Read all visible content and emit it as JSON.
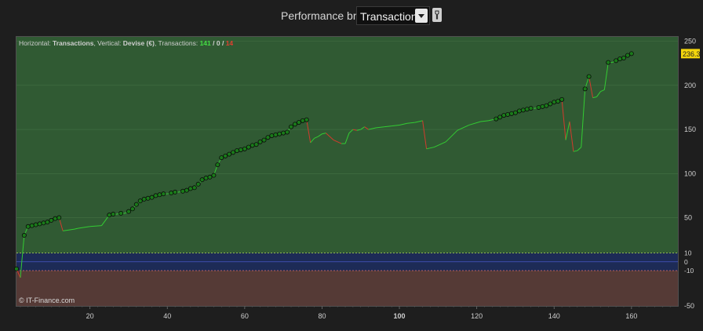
{
  "header": {
    "label": "Performance brute",
    "select_value": "Transactions",
    "select_icon": "chevron-down-icon",
    "tool_icon": "wrench-icon"
  },
  "info": {
    "horizontal_key": "Horizontal: ",
    "horizontal_value": "Transactions",
    "vertical_key": ", Vertical: ",
    "vertical_value": "Devise (€)",
    "transactions_key": ", Transactions: ",
    "winners": "141",
    "sep1": " / ",
    "neutral": "0",
    "sep2": " / ",
    "losers": "14"
  },
  "copyright": "© IT-Finance.com",
  "colors": {
    "background": "#1e1e1e",
    "positive_zone": "#305a33",
    "negative_zone": "#553a36",
    "neutral_band": "#1d2b56",
    "gain_line": "#33cc33",
    "loss_line": "#d23b2d",
    "marker": "#1a7a1a",
    "last_value_bg": "#f4d60c",
    "winners_text": "#44dd44",
    "losers_text": "#e04030"
  },
  "chart_data": {
    "type": "line",
    "xlabel": "",
    "ylabel": "",
    "xlim": [
      1,
      172
    ],
    "ylim": [
      -50,
      255
    ],
    "x_ticks": [
      20,
      40,
      60,
      80,
      100,
      120,
      140,
      160
    ],
    "x_tick_labels": [
      "20",
      "40",
      "60",
      "80",
      "100",
      "120",
      "140",
      "160"
    ],
    "y_ticks": [
      -50,
      50,
      100,
      150,
      200,
      250
    ],
    "y_tick_labels": [
      "-50",
      "50",
      "100",
      "150",
      "200",
      "250"
    ],
    "threshold_high": 10,
    "threshold_low": -10,
    "threshold_labels": [
      "10",
      "0",
      "-10"
    ],
    "last_value": "236.3",
    "grid": true,
    "series": [
      {
        "points": [
          [
            1,
            -8
          ],
          [
            2,
            -18
          ],
          [
            3,
            30
          ],
          [
            4,
            40
          ],
          [
            5,
            41
          ],
          [
            6,
            42
          ],
          [
            7,
            43
          ],
          [
            8,
            44
          ],
          [
            9,
            45
          ],
          [
            10,
            47
          ],
          [
            11,
            49
          ],
          [
            12,
            50
          ],
          [
            13,
            35
          ],
          [
            16,
            37
          ],
          [
            17,
            38
          ],
          [
            20,
            40
          ],
          [
            23,
            41
          ],
          [
            25,
            53
          ],
          [
            26,
            54
          ],
          [
            27,
            54
          ],
          [
            28,
            55
          ],
          [
            29,
            55
          ],
          [
            30,
            57
          ],
          [
            31,
            60
          ],
          [
            32,
            65
          ],
          [
            33,
            69
          ],
          [
            34,
            71
          ],
          [
            35,
            72
          ],
          [
            36,
            73
          ],
          [
            37,
            75
          ],
          [
            38,
            76
          ],
          [
            39,
            77
          ],
          [
            40,
            77
          ],
          [
            41,
            78
          ],
          [
            42,
            79
          ],
          [
            43,
            79
          ],
          [
            44,
            80
          ],
          [
            45,
            81
          ],
          [
            46,
            83
          ],
          [
            47,
            84
          ],
          [
            48,
            88
          ],
          [
            49,
            93
          ],
          [
            50,
            95
          ],
          [
            51,
            96
          ],
          [
            52,
            98
          ],
          [
            53,
            110
          ],
          [
            54,
            118
          ],
          [
            55,
            120
          ],
          [
            56,
            122
          ],
          [
            57,
            124
          ],
          [
            58,
            126
          ],
          [
            59,
            127
          ],
          [
            60,
            128
          ],
          [
            61,
            130
          ],
          [
            62,
            132
          ],
          [
            63,
            133
          ],
          [
            64,
            136
          ],
          [
            65,
            138
          ],
          [
            66,
            141
          ],
          [
            67,
            143
          ],
          [
            68,
            144
          ],
          [
            69,
            145
          ],
          [
            70,
            146
          ],
          [
            71,
            147
          ],
          [
            72,
            153
          ],
          [
            73,
            156
          ],
          [
            74,
            158
          ],
          [
            75,
            160
          ],
          [
            76,
            161
          ],
          [
            77,
            135
          ],
          [
            78,
            140
          ],
          [
            79,
            142
          ],
          [
            80,
            145
          ],
          [
            81,
            146
          ],
          [
            83,
            138
          ],
          [
            85,
            134
          ],
          [
            86,
            134
          ],
          [
            87,
            146
          ],
          [
            88,
            150
          ],
          [
            89,
            149
          ],
          [
            90,
            150
          ],
          [
            91,
            153
          ],
          [
            92,
            150
          ],
          [
            93,
            151
          ],
          [
            94,
            152
          ],
          [
            96,
            153
          ],
          [
            98,
            154
          ],
          [
            100,
            155
          ],
          [
            102,
            157
          ],
          [
            104,
            158
          ],
          [
            106,
            160
          ],
          [
            107,
            128
          ],
          [
            109,
            130
          ],
          [
            112,
            136
          ],
          [
            115,
            149
          ],
          [
            118,
            155
          ],
          [
            121,
            159
          ],
          [
            123,
            160
          ],
          [
            124,
            161
          ],
          [
            125,
            162
          ],
          [
            126,
            164
          ],
          [
            127,
            166
          ],
          [
            128,
            167
          ],
          [
            129,
            168
          ],
          [
            130,
            169
          ],
          [
            131,
            171
          ],
          [
            132,
            172
          ],
          [
            133,
            173
          ],
          [
            134,
            174
          ],
          [
            135,
            174
          ],
          [
            136,
            175
          ],
          [
            137,
            176
          ],
          [
            138,
            177
          ],
          [
            139,
            179
          ],
          [
            140,
            181
          ],
          [
            141,
            182
          ],
          [
            142,
            184
          ],
          [
            143,
            138
          ],
          [
            144,
            159
          ],
          [
            145,
            125
          ],
          [
            146,
            126
          ],
          [
            147,
            130
          ],
          [
            148,
            196
          ],
          [
            149,
            210
          ],
          [
            150,
            186
          ],
          [
            151,
            187
          ],
          [
            152,
            193
          ],
          [
            153,
            195
          ],
          [
            154,
            226
          ],
          [
            155,
            226
          ],
          [
            156,
            228
          ],
          [
            157,
            230
          ],
          [
            158,
            231
          ],
          [
            159,
            234
          ],
          [
            160,
            236
          ]
        ]
      }
    ]
  }
}
